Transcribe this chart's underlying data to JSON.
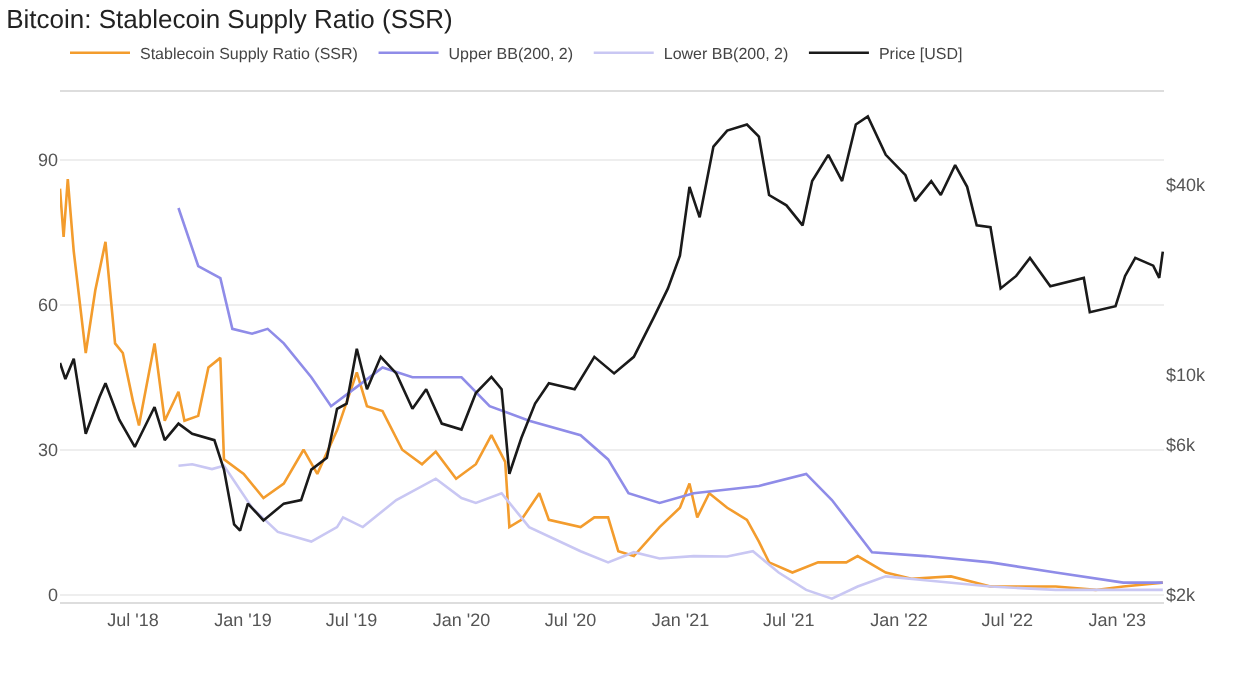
{
  "chart_data": {
    "type": "line",
    "title": "Bitcoin: Stablecoin Supply Ratio (SSR)",
    "series": [
      {
        "name": "Stablecoin Supply Ratio (SSR)",
        "color": "#f39c2d",
        "x": [
          "2018-03-01",
          "2018-03-07",
          "2018-03-14",
          "2018-03-24",
          "2018-04-13",
          "2018-04-29",
          "2018-05-16",
          "2018-06-01",
          "2018-06-14",
          "2018-07-01",
          "2018-07-11",
          "2018-08-06",
          "2018-08-23",
          "2018-09-15",
          "2018-09-25",
          "2018-10-18",
          "2018-11-04",
          "2018-11-24",
          "2018-11-30",
          "2019-01-02",
          "2019-02-04",
          "2019-03-10",
          "2019-04-12",
          "2019-05-05",
          "2019-06-07",
          "2019-07-10",
          "2019-07-27",
          "2019-08-22",
          "2019-09-24",
          "2019-10-27",
          "2019-11-19",
          "2019-12-23",
          "2020-01-25",
          "2020-02-20",
          "2020-03-14",
          "2020-03-21",
          "2020-04-10",
          "2020-05-10",
          "2020-05-26",
          "2020-07-18",
          "2020-08-10",
          "2020-09-02",
          "2020-09-19",
          "2020-10-15",
          "2020-11-27",
          "2020-12-31",
          "2021-01-16",
          "2021-01-29",
          "2021-02-18",
          "2021-03-20",
          "2021-04-22",
          "2021-05-12",
          "2021-05-29",
          "2021-07-07",
          "2021-08-19",
          "2021-10-05",
          "2021-10-24",
          "2021-12-10",
          "2022-01-22",
          "2022-03-29",
          "2022-06-03",
          "2022-09-20",
          "2022-11-26",
          "2023-01-11",
          "2023-03-18"
        ],
        "values": [
          84,
          74,
          86,
          71,
          50,
          63,
          73,
          52,
          50,
          40,
          35,
          52,
          36,
          42,
          36,
          37,
          47,
          49,
          28,
          25,
          20,
          23,
          30,
          25,
          34,
          46,
          39,
          38,
          30,
          27,
          29.6,
          24,
          27,
          33,
          27.5,
          14,
          15.5,
          21,
          15.5,
          14,
          16,
          16,
          9,
          8,
          14,
          18,
          23,
          16,
          21,
          18,
          15.5,
          11,
          6.7,
          4.6,
          6.7,
          6.7,
          8,
          4.6,
          3.3,
          3.8,
          1.7,
          1.7,
          1.0,
          1.7,
          2.5
        ]
      },
      {
        "name": "Upper BB(200, 2)",
        "color": "#8f8ce8",
        "x": [
          "2018-09-15",
          "2018-10-18",
          "2018-11-24",
          "2018-12-14",
          "2019-01-16",
          "2019-02-11",
          "2019-03-10",
          "2019-04-25",
          "2019-05-28",
          "2019-07-10",
          "2019-08-22",
          "2019-10-11",
          "2020-01-01",
          "2020-02-17",
          "2020-04-23",
          "2020-07-18",
          "2020-09-02",
          "2020-10-06",
          "2020-11-27",
          "2021-01-23",
          "2021-05-12",
          "2021-07-30",
          "2021-09-11",
          "2021-11-17",
          "2022-02-14",
          "2022-06-03",
          "2022-09-20",
          "2023-01-11",
          "2023-03-18"
        ],
        "values": [
          80,
          68,
          65.5,
          55,
          54,
          55,
          52,
          45,
          39,
          43,
          47,
          45,
          45,
          39,
          36,
          33,
          28,
          21,
          19,
          21,
          22.5,
          25,
          19.6,
          8.8,
          8,
          6.7,
          4.6,
          2.5,
          2.5
        ]
      },
      {
        "name": "Lower BB(200, 2)",
        "color": "#c9c7f3",
        "x": [
          "2018-09-15",
          "2018-10-08",
          "2018-11-10",
          "2018-11-30",
          "2019-01-16",
          "2019-02-28",
          "2019-04-25",
          "2019-06-07",
          "2019-06-17",
          "2019-07-20",
          "2019-09-14",
          "2019-11-19",
          "2020-01-01",
          "2020-01-25",
          "2020-03-08",
          "2020-04-23",
          "2020-07-18",
          "2020-09-02",
          "2020-10-15",
          "2020-11-27",
          "2021-01-23",
          "2021-03-20",
          "2021-05-02",
          "2021-06-14",
          "2021-07-30",
          "2021-09-11",
          "2021-10-24",
          "2021-12-10",
          "2022-02-14",
          "2022-06-03",
          "2022-09-20",
          "2023-01-11",
          "2023-03-18"
        ],
        "values": [
          26.7,
          27,
          26,
          26.7,
          18,
          13,
          11,
          14,
          16,
          14,
          19.6,
          24,
          20,
          19,
          21,
          14,
          9,
          6.7,
          8.8,
          7.5,
          8,
          7.9,
          9,
          4.6,
          1,
          -0.8,
          1.7,
          3.8,
          3,
          1.7,
          1,
          1,
          1
        ]
      },
      {
        "name": "Price [USD]",
        "color": "#1a1a1a",
        "axis": "y2",
        "x": [
          "2018-03-01",
          "2018-03-10",
          "2018-03-24",
          "2018-04-13",
          "2018-05-06",
          "2018-05-16",
          "2018-06-08",
          "2018-07-04",
          "2018-08-06",
          "2018-08-23",
          "2018-09-15",
          "2018-10-08",
          "2018-11-14",
          "2018-11-30",
          "2018-12-17",
          "2018-12-27",
          "2019-01-09",
          "2019-02-04",
          "2019-03-10",
          "2019-04-08",
          "2019-04-25",
          "2019-05-21",
          "2019-06-07",
          "2019-06-23",
          "2019-07-10",
          "2019-07-27",
          "2019-08-19",
          "2019-09-14",
          "2019-10-11",
          "2019-11-03",
          "2019-11-29",
          "2020-01-01",
          "2020-01-25",
          "2020-02-20",
          "2020-03-08",
          "2020-03-21",
          "2020-04-10",
          "2020-05-03",
          "2020-05-26",
          "2020-07-08",
          "2020-08-10",
          "2020-09-12",
          "2020-10-15",
          "2020-11-18",
          "2020-12-11",
          "2020-12-31",
          "2021-01-16",
          "2021-02-02",
          "2021-02-25",
          "2021-03-20",
          "2021-04-22",
          "2021-05-12",
          "2021-05-29",
          "2021-06-27",
          "2021-07-24",
          "2021-08-09",
          "2021-09-05",
          "2021-09-28",
          "2021-10-21",
          "2021-11-10",
          "2021-12-10",
          "2022-01-12",
          "2022-01-28",
          "2022-02-24",
          "2022-03-12",
          "2022-04-05",
          "2022-04-25",
          "2022-05-11",
          "2022-06-03",
          "2022-06-20",
          "2022-07-16",
          "2022-08-08",
          "2022-09-11",
          "2022-11-06",
          "2022-11-16",
          "2022-12-29",
          "2023-01-14",
          "2023-01-31",
          "2023-03-02",
          "2023-03-12",
          "2023-03-18"
        ],
        "values": [
          10900,
          9700,
          11250,
          6500,
          8500,
          9400,
          7200,
          5900,
          7900,
          6200,
          7000,
          6500,
          6200,
          5000,
          3350,
          3200,
          3900,
          3450,
          3900,
          4000,
          5000,
          5450,
          7800,
          8100,
          12100,
          9000,
          11400,
          10100,
          7800,
          9000,
          7000,
          6700,
          8750,
          9850,
          9000,
          4850,
          6300,
          8100,
          9400,
          9000,
          11400,
          10100,
          11400,
          15300,
          18800,
          23900,
          39500,
          31600,
          53000,
          59600,
          62300,
          57000,
          37200,
          34500,
          29800,
          41200,
          49900,
          41200,
          62300,
          66100,
          49900,
          43000,
          35600,
          41200,
          37200,
          46300,
          39500,
          29800,
          29400,
          18800,
          20600,
          23500,
          19100,
          20300,
          15800,
          16500,
          20600,
          23500,
          22200,
          20300,
          24600
        ]
      }
    ],
    "xlim": [
      "2018-03-01",
      "2023-03-20"
    ],
    "xticks": [
      {
        "value": "2018-07-01",
        "label": "Jul '18"
      },
      {
        "value": "2019-01-01",
        "label": "Jan '19"
      },
      {
        "value": "2019-07-01",
        "label": "Jul '19"
      },
      {
        "value": "2020-01-01",
        "label": "Jan '20"
      },
      {
        "value": "2020-07-01",
        "label": "Jul '20"
      },
      {
        "value": "2021-01-01",
        "label": "Jan '21"
      },
      {
        "value": "2021-07-01",
        "label": "Jul '21"
      },
      {
        "value": "2022-01-01",
        "label": "Jan '22"
      },
      {
        "value": "2022-07-01",
        "label": "Jul '22"
      },
      {
        "value": "2023-01-01",
        "label": "Jan '23"
      }
    ],
    "ylim": [
      -1.5,
      104
    ],
    "yticks": [
      0,
      30,
      60,
      90
    ],
    "y2lim": [
      1900,
      79000
    ],
    "y2ticks": [
      {
        "value": 2000,
        "label": "$2k"
      },
      {
        "value": 6000,
        "label": "$6k"
      },
      {
        "value": 10000,
        "label": "$10k"
      },
      {
        "value": 40000,
        "label": "$40k"
      }
    ],
    "log": "y2",
    "grid": "y",
    "legend": "top left",
    "marker": "none",
    "line_style": "solid"
  }
}
